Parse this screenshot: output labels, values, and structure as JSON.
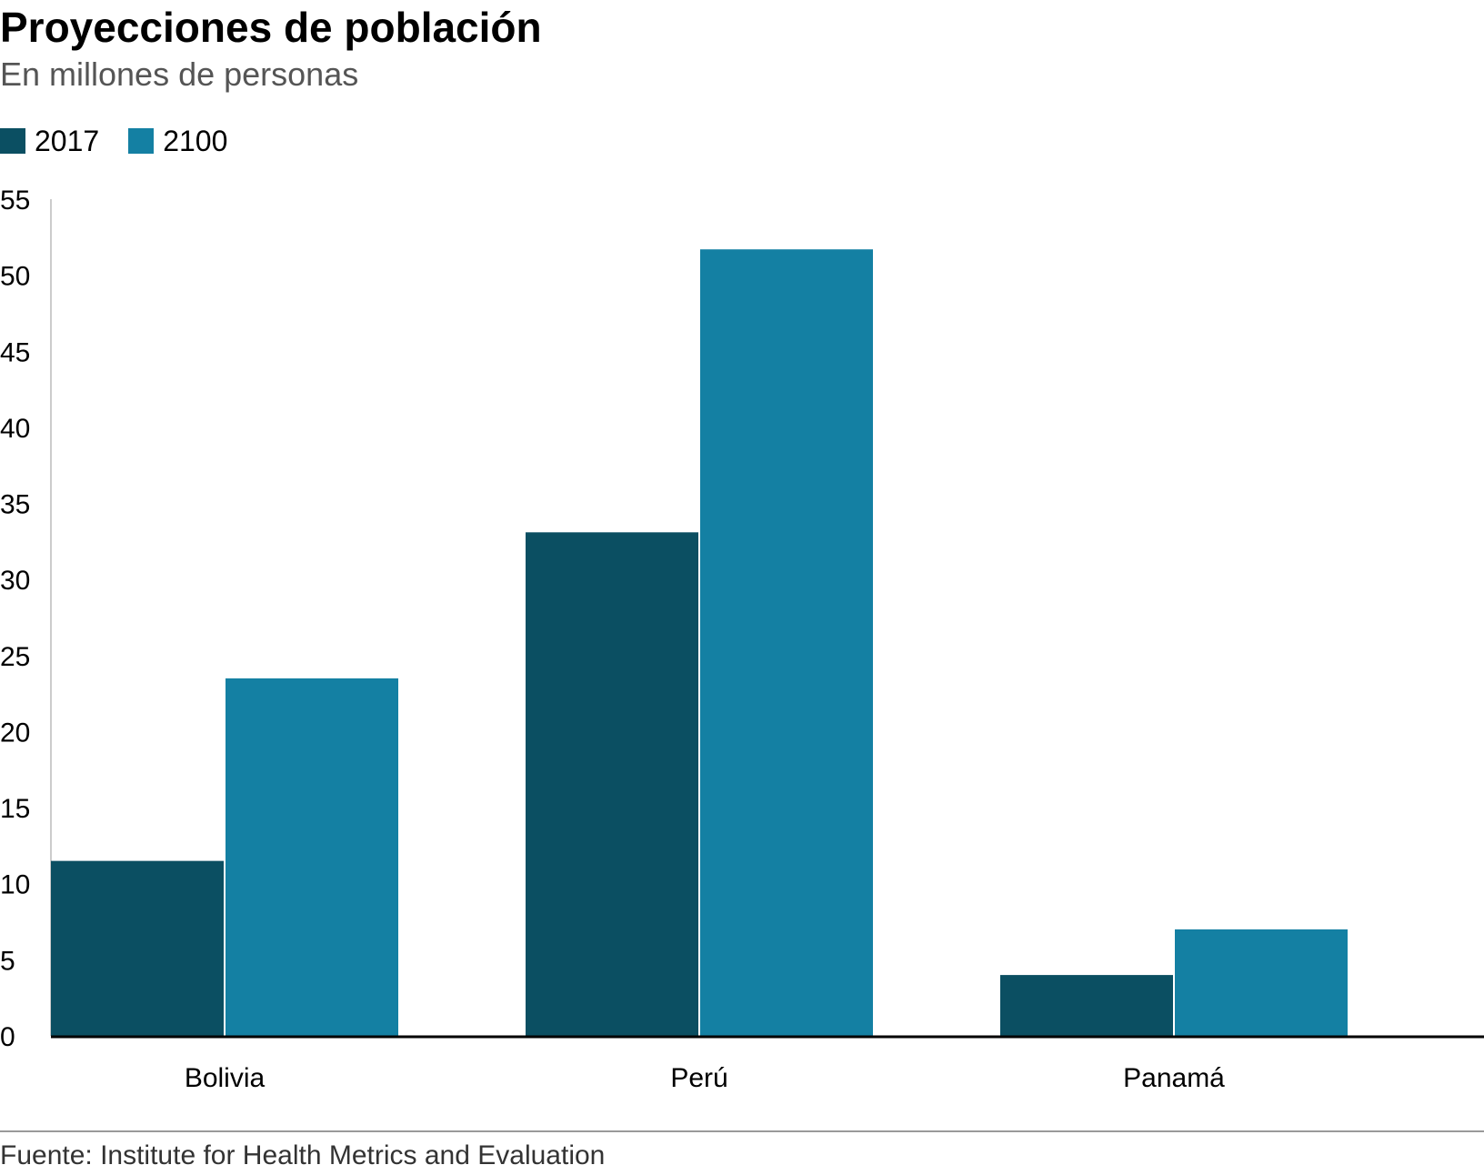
{
  "title": "Proyecciones de población",
  "subtitle": "En millones de personas",
  "source": "Fuente: Institute for Health Metrics and Evaluation",
  "colors": {
    "series_2017": "#0b4f62",
    "series_2100": "#1480a3",
    "axis": "#000000",
    "yaxis": "#cccccc"
  },
  "chart_data": {
    "type": "bar",
    "title": "Proyecciones de población",
    "subtitle": "En millones de personas",
    "categories": [
      "Bolivia",
      "Perú",
      "Panamá"
    ],
    "series": [
      {
        "name": "2017",
        "values": [
          11.5,
          33.1,
          4.0
        ]
      },
      {
        "name": "2100",
        "values": [
          23.5,
          51.7,
          7.0
        ]
      }
    ],
    "xlabel": "",
    "ylabel": "",
    "ylim": [
      0,
      55
    ],
    "yticks": [
      0,
      5,
      10,
      15,
      20,
      25,
      30,
      35,
      40,
      45,
      50,
      55
    ],
    "grid": false,
    "legend_position": "top-left"
  }
}
